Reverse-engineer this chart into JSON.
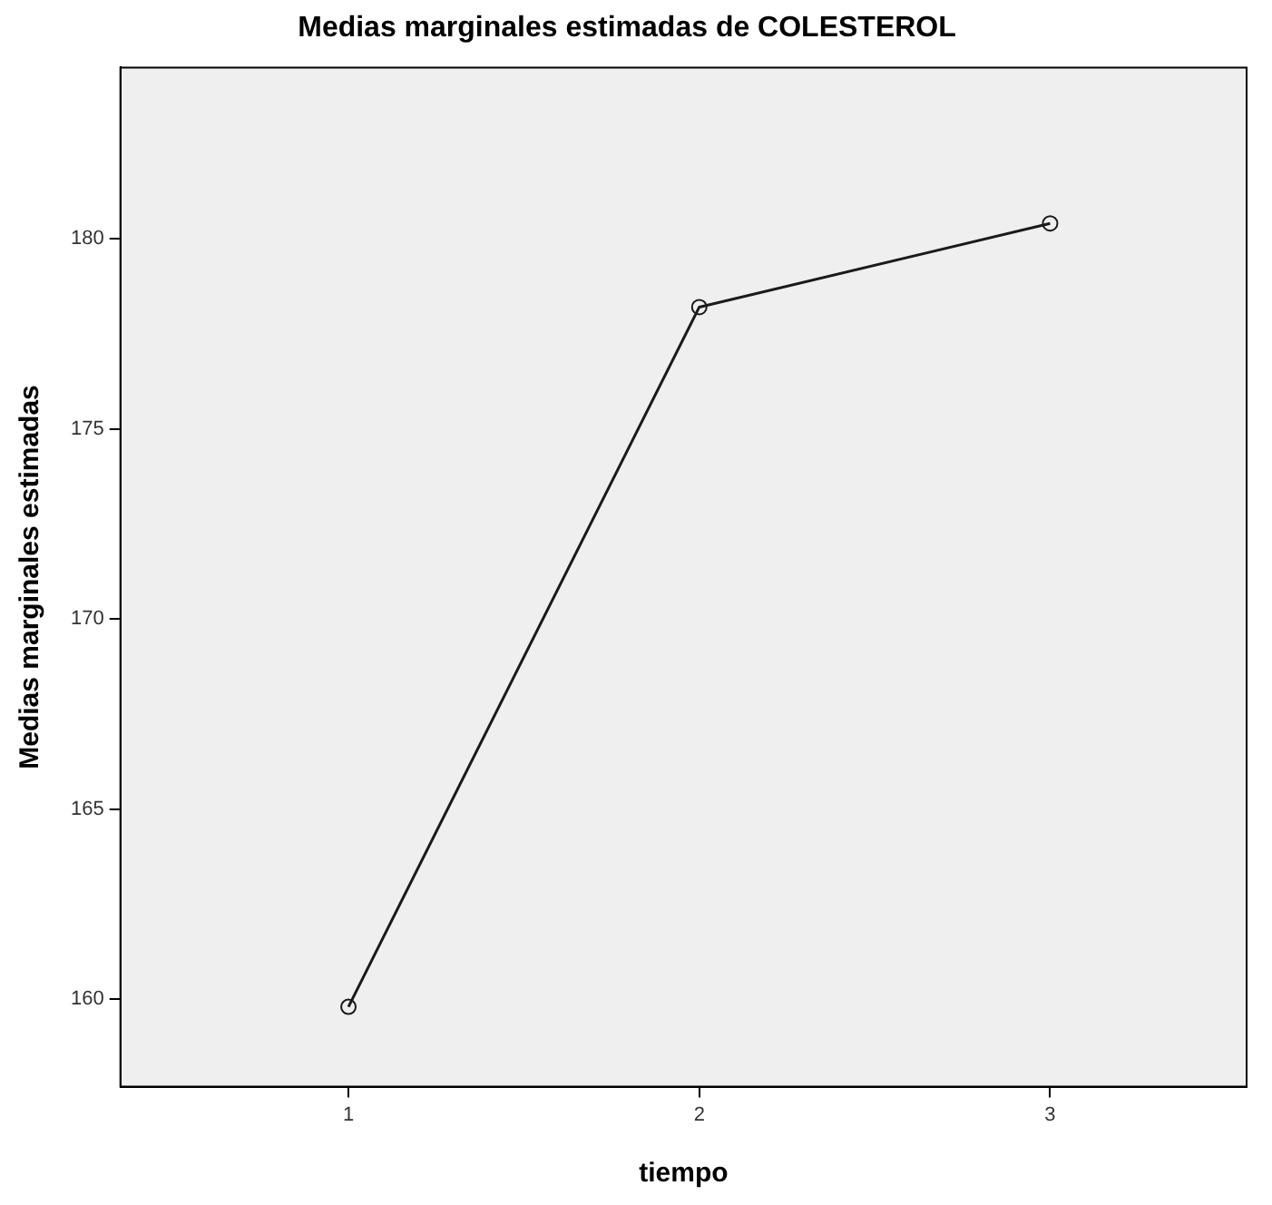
{
  "chart_data": {
    "type": "line",
    "title": "Medias marginales estimadas de COLESTEROL",
    "xlabel": "tiempo",
    "ylabel": "Medias marginales estimadas",
    "x": [
      1,
      2,
      3
    ],
    "series": [
      {
        "color": "#1a1a1a",
        "values": [
          159.8,
          178.2,
          180.4
        ]
      }
    ],
    "xlim": [
      0.35,
      3.56
    ],
    "xticks": [
      1,
      2,
      3
    ],
    "ylim": [
      157.7,
      184.5
    ],
    "yticks": [
      160,
      165,
      170,
      175,
      180
    ],
    "grid": false,
    "legend": false,
    "marker": "circle",
    "line_style": "solid"
  }
}
